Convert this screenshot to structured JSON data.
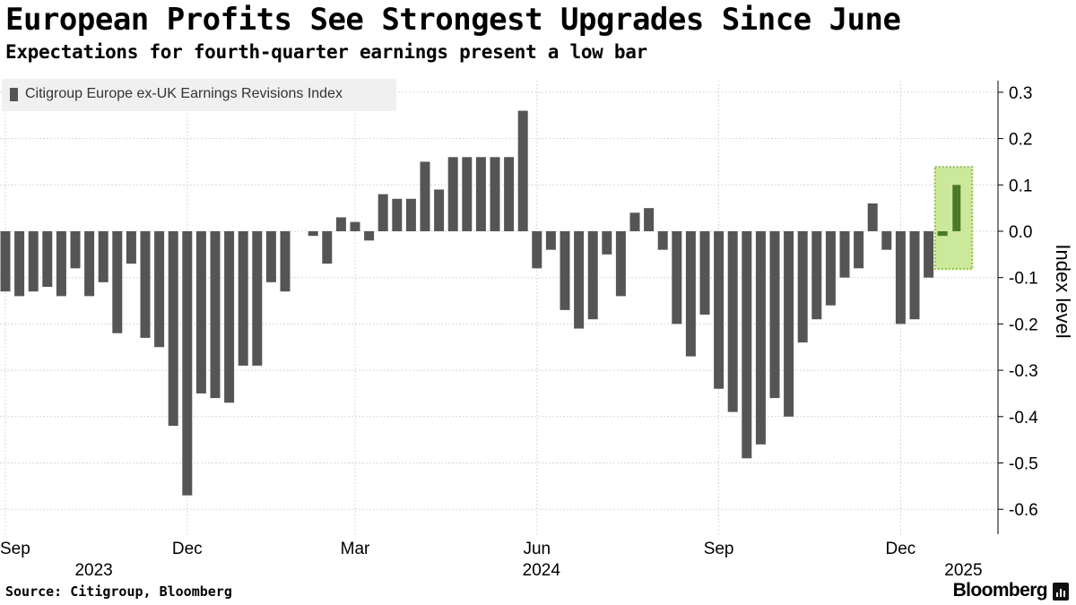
{
  "title": "European Profits See Strongest Upgrades Since June",
  "subtitle": "Expectations for fourth-quarter earnings present a low bar",
  "legend": {
    "label": "Citigroup Europe ex-UK Earnings Revisions Index"
  },
  "source": "Source: Citigroup, Bloomberg",
  "brand": "Bloomberg",
  "colors": {
    "bar": "#555555",
    "highlight_bar": "#4a7a28",
    "highlight_fill": "#cce89a",
    "highlight_border": "#8ac43f",
    "grid": "#d8d8d8"
  },
  "chart_data": {
    "type": "bar",
    "series": [
      {
        "name": "Citigroup Europe ex-UK Earnings Revisions Index",
        "values": [
          -0.13,
          -0.14,
          -0.13,
          -0.12,
          -0.14,
          -0.08,
          -0.14,
          -0.11,
          -0.22,
          -0.07,
          -0.23,
          -0.25,
          -0.42,
          -0.57,
          -0.35,
          -0.36,
          -0.37,
          -0.29,
          -0.29,
          -0.11,
          -0.13,
          null,
          -0.01,
          -0.07,
          0.03,
          0.02,
          -0.02,
          0.08,
          0.07,
          0.07,
          0.15,
          0.09,
          0.16,
          0.16,
          0.16,
          0.16,
          0.16,
          0.26,
          -0.08,
          -0.04,
          -0.17,
          -0.21,
          -0.19,
          -0.05,
          -0.14,
          0.04,
          0.05,
          -0.04,
          -0.2,
          -0.27,
          -0.18,
          -0.34,
          -0.39,
          -0.49,
          -0.46,
          -0.36,
          -0.4,
          -0.24,
          -0.19,
          -0.16,
          -0.1,
          -0.08,
          0.06,
          -0.04,
          -0.2,
          -0.19,
          -0.1,
          -0.01,
          0.1
        ]
      }
    ],
    "highlight_last": 2,
    "ylim": [
      -0.65,
      0.3
    ],
    "yticks": [
      0.3,
      0.2,
      0.1,
      0.0,
      -0.1,
      -0.2,
      -0.3,
      -0.4,
      -0.5,
      -0.6
    ],
    "ytick_labels": [
      "0.3",
      "0.2",
      "0.1",
      "0.0",
      "-0.1",
      "-0.2",
      "-0.3",
      "-0.4",
      "-0.5",
      "-0.6"
    ],
    "ylabel": "Index level",
    "xtick_month_labels": [
      "Sep",
      "Dec",
      "Mar",
      "Jun",
      "Sep",
      "Dec"
    ],
    "xtick_month_index": [
      0,
      13,
      25,
      38,
      51,
      64
    ],
    "xtick_year_labels": [
      "2023",
      "2024",
      "2025"
    ],
    "xtick_year_index": [
      6,
      38,
      69
    ],
    "gridlines": true
  }
}
